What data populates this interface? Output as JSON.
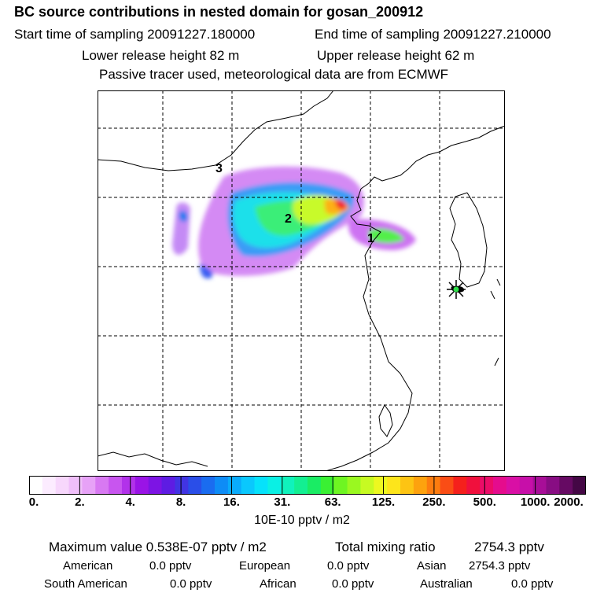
{
  "header": {
    "title": "BC  source contributions in nested domain for gosan_200912",
    "start_label": "Start time of sampling 20091227.180000",
    "end_label": "End time of sampling 20091227.210000",
    "lower_label": "Lower release height   82 m",
    "upper_label": "Upper release height   62 m",
    "info": "Passive tracer used, meteorological data are from ECMWF"
  },
  "map": {
    "markers": [
      "1",
      "2",
      "3"
    ],
    "receptor": "gosan-receptor-star"
  },
  "colorbar": {
    "ticks": [
      "0.",
      "2.",
      "4.",
      "8.",
      "16.",
      "31.",
      "63.",
      "125.",
      "250.",
      "500.",
      "1000.",
      "2000."
    ],
    "units": "10E-10 pptv / m2",
    "colors": [
      "#ffffff",
      "#fcecff",
      "#f7d7fc",
      "#f0bffa",
      "#e7a2f7",
      "#d879f2",
      "#c855ef",
      "#b232ea",
      "#9a14e6",
      "#7d14e4",
      "#5e1ce3",
      "#4134e3",
      "#2a4ee8",
      "#1a6cf0",
      "#0e8cf6",
      "#0aabfb",
      "#0ac8fd",
      "#06e2fb",
      "#0af0e4",
      "#10f2bc",
      "#13ef92",
      "#1aec64",
      "#3af033",
      "#6ef522",
      "#9af820",
      "#c7fa22",
      "#edf820",
      "#fde51b",
      "#fdc413",
      "#fda20e",
      "#fd7c0f",
      "#fa4d15",
      "#f5201c",
      "#f0103d",
      "#ec0c68",
      "#e50c8d",
      "#d90fa5",
      "#c70fa9",
      "#a80e98",
      "#880d83",
      "#660a63",
      "#440745"
    ]
  },
  "summary": {
    "max_label": "Maximum value  0.538E-07 pptv / m2",
    "total_label": "Total mixing ratio",
    "total_value": "2754.3 pptv",
    "regions": [
      {
        "name": "American",
        "value": "0.0 pptv"
      },
      {
        "name": "European",
        "value": "0.0 pptv"
      },
      {
        "name": "Asian",
        "value": "2754.3 pptv"
      },
      {
        "name": "South American",
        "value": "0.0 pptv"
      },
      {
        "name": "African",
        "value": "0.0 pptv"
      },
      {
        "name": "Australian",
        "value": "0.0 pptv"
      }
    ]
  }
}
